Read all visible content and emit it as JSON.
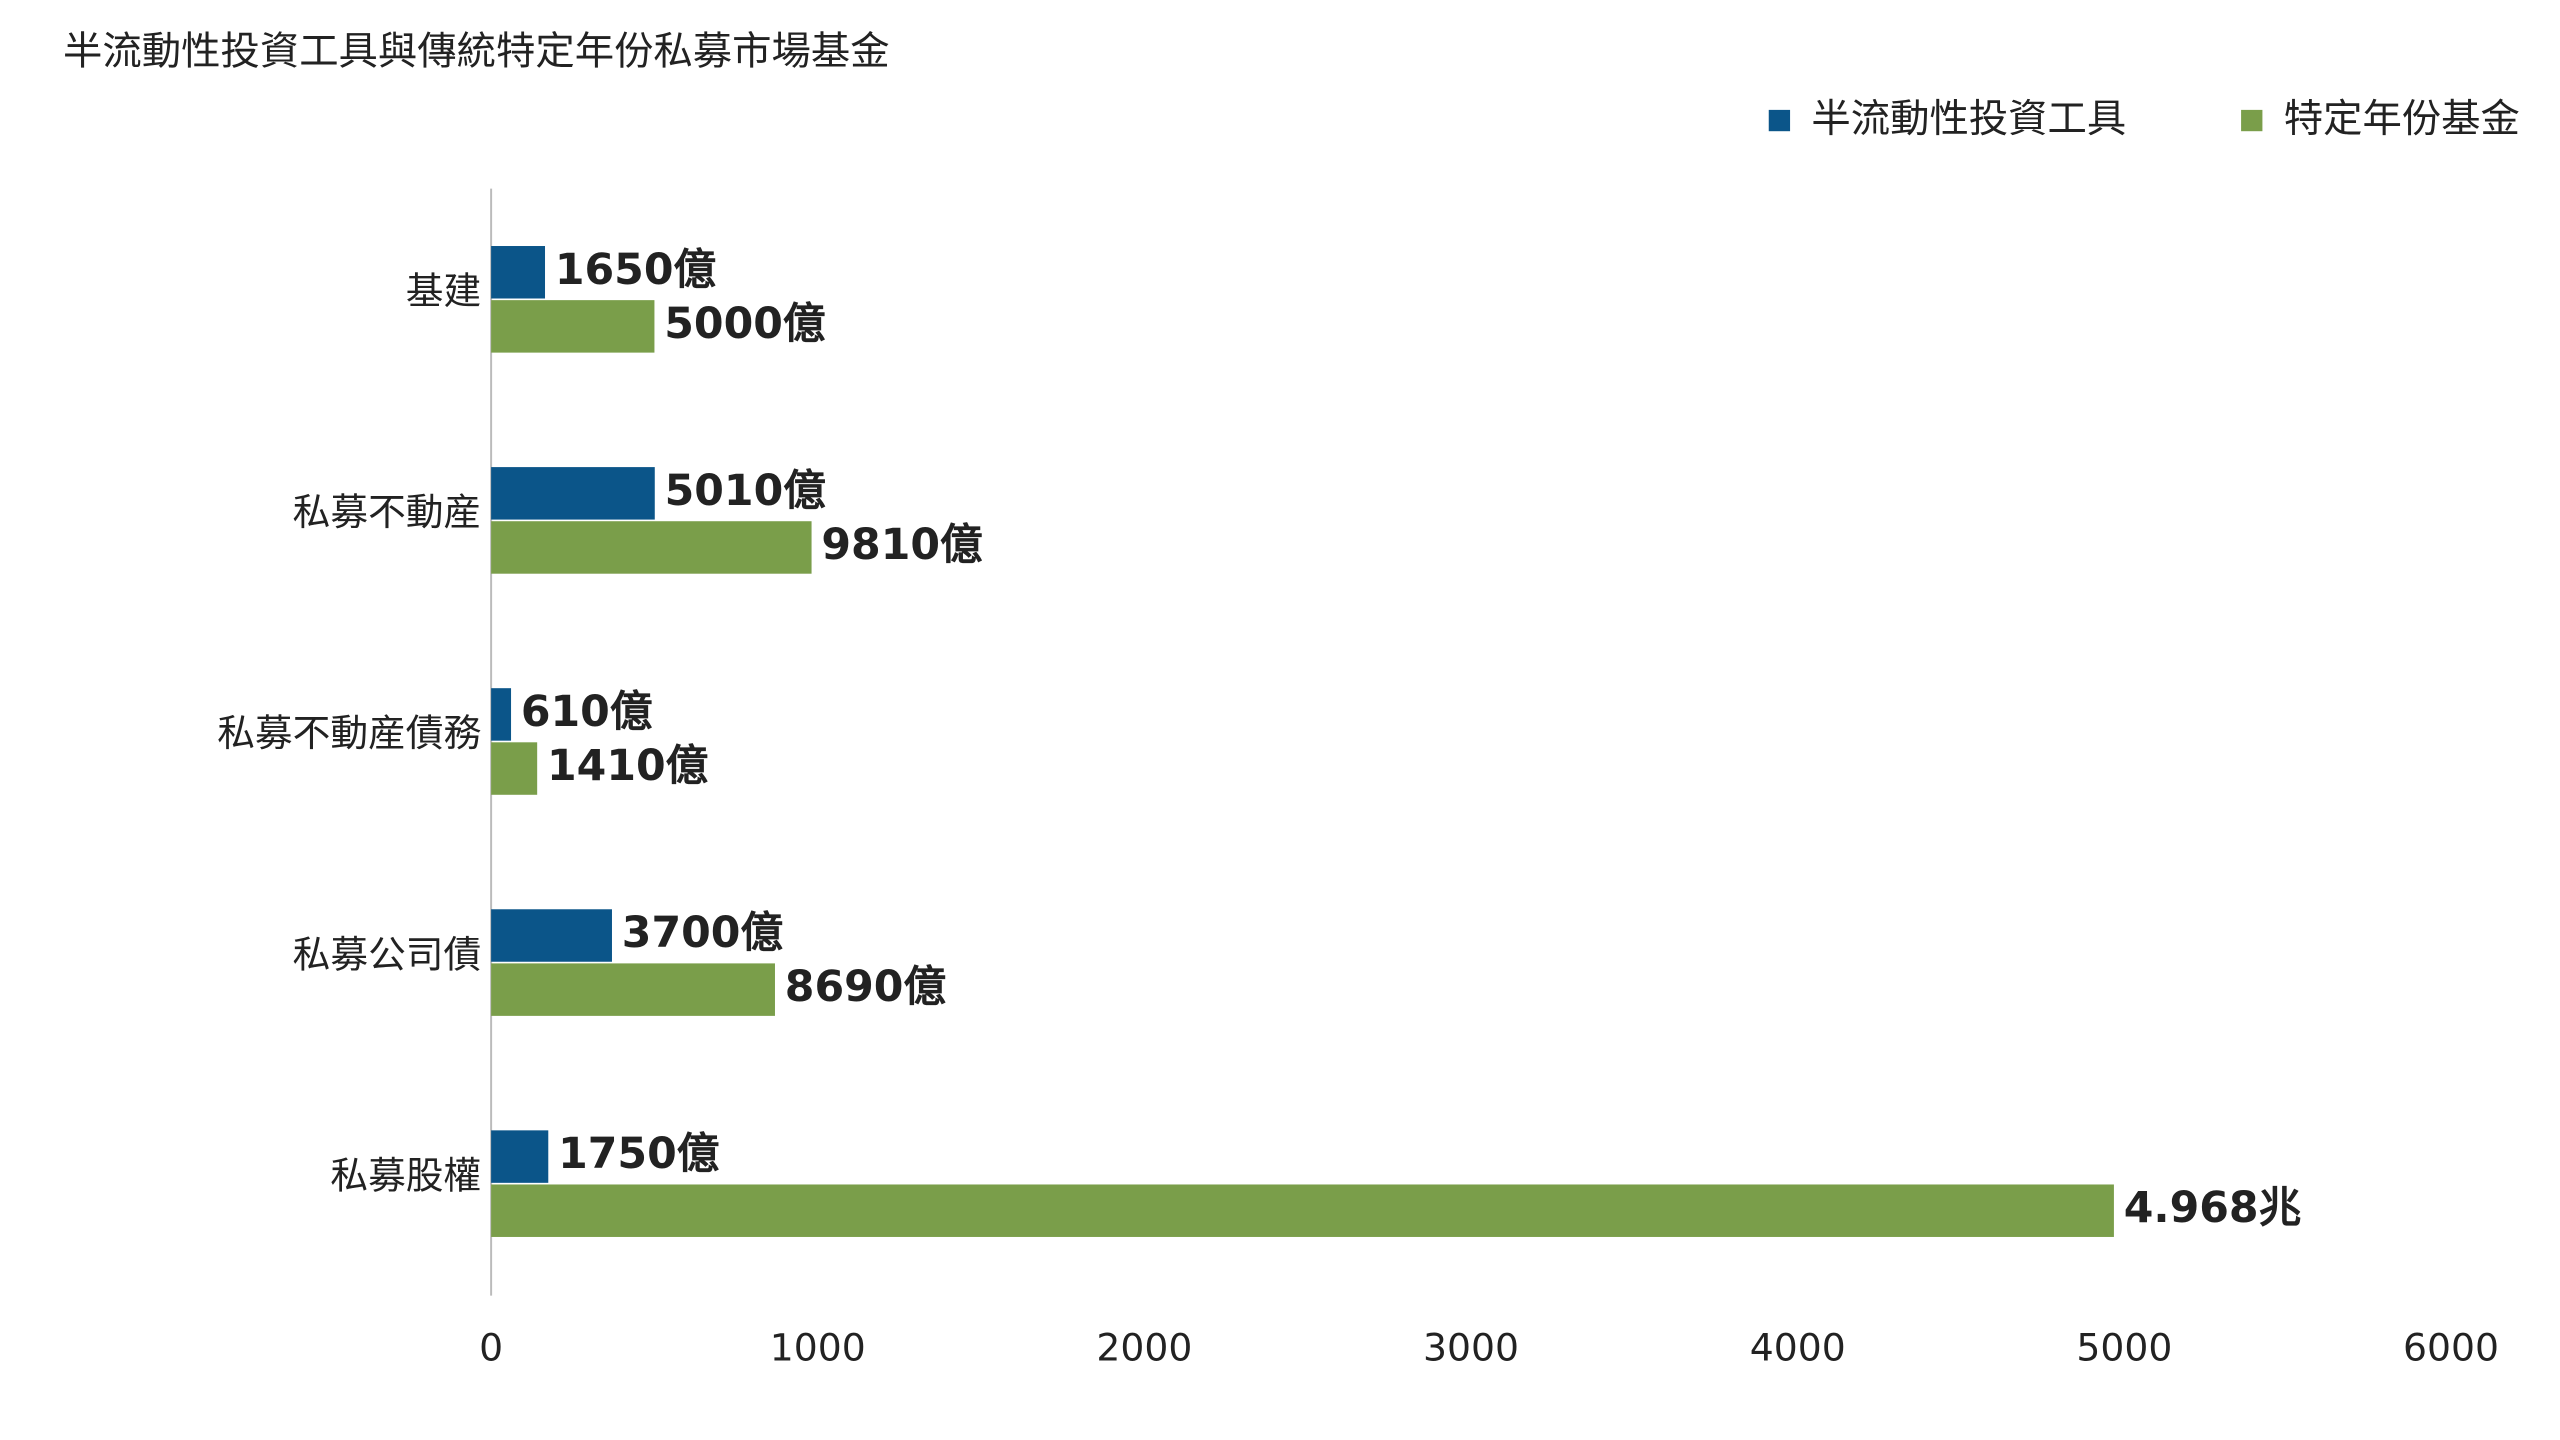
{
  "chart_data": {
    "type": "hbar",
    "title": "半流動性投資工具與傳統特定年份私募市場基金",
    "categories": [
      "基建",
      "私募不動産",
      "私募不動産債務",
      "私募公司債",
      "私募股權"
    ],
    "series": [
      {
        "name": "半流動性投資工具",
        "color": "#0b5589",
        "values": [
          165,
          501,
          61,
          370,
          175
        ],
        "value_labels": [
          "1650億",
          "5010億",
          "610億",
          "3700億",
          "1750億"
        ]
      },
      {
        "name": "特定年份基金",
        "color": "#7a9e4a",
        "values": [
          500,
          981,
          141,
          869,
          4968
        ],
        "value_labels": [
          "5000億",
          "9810億",
          "1410億",
          "8690億",
          "4.968兆"
        ]
      }
    ],
    "xlim": [
      0,
      6000
    ],
    "xticks": [
      0,
      1000,
      2000,
      3000,
      4000,
      5000,
      6000
    ],
    "legend": "top-right"
  }
}
